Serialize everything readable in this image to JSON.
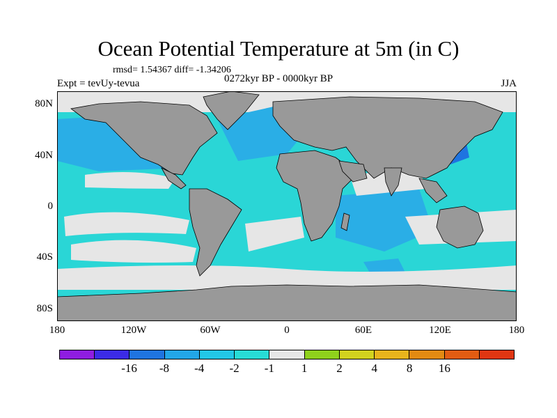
{
  "title": "Ocean Potential Temperature at 5m (in C)",
  "stats": "rmsd= 1.54367 diff= -1.34206",
  "experiment": "Expt = tevUy-tevua",
  "period": "0272kyr BP - 0000kyr BP",
  "season": "JJA",
  "lat_labels": [
    "80N",
    "40N",
    "0",
    "40S",
    "80S"
  ],
  "lon_labels": [
    "180",
    "120W",
    "60W",
    "0",
    "60E",
    "120E",
    "180"
  ],
  "colorbar": {
    "colors": [
      "#8f1de0",
      "#3b2be6",
      "#1f74e0",
      "#22a6e8",
      "#22c7e6",
      "#27dcd6",
      "#e6e6e6",
      "#8fd11c",
      "#d2d21e",
      "#e8b41c",
      "#e38a12",
      "#e25c12",
      "#e03612"
    ],
    "labels": [
      "-16",
      "-8",
      "-4",
      "-2",
      "-1",
      "1",
      "2",
      "4",
      "8",
      "16"
    ]
  },
  "map_colors": {
    "land": "#999999",
    "neutral": "#e6e6e6",
    "cool1": "#2ad6d6",
    "cool2": "#2aaee6",
    "cool3": "#1f74e0"
  }
}
